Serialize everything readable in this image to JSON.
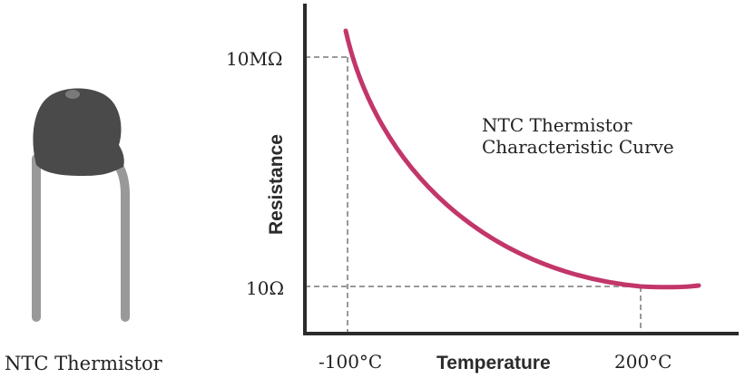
{
  "component": {
    "label": "NTC Thermistor",
    "body_color": "#4a4a4a",
    "lead_color": "#999999"
  },
  "chart_data": {
    "type": "line",
    "title": "NTC Thermistor Characteristic Curve",
    "title_lines": [
      "NTC Thermistor",
      "Characteristic Curve"
    ],
    "xlabel": "Temperature",
    "ylabel": "Resistance",
    "x_ticks": [
      "-100°C",
      "200°C"
    ],
    "y_ticks": [
      "10MΩ",
      "10Ω"
    ],
    "curve_color": "#c2366a",
    "axis_color": "#2b2b2b",
    "guide_color": "#999999",
    "grid": false
  }
}
